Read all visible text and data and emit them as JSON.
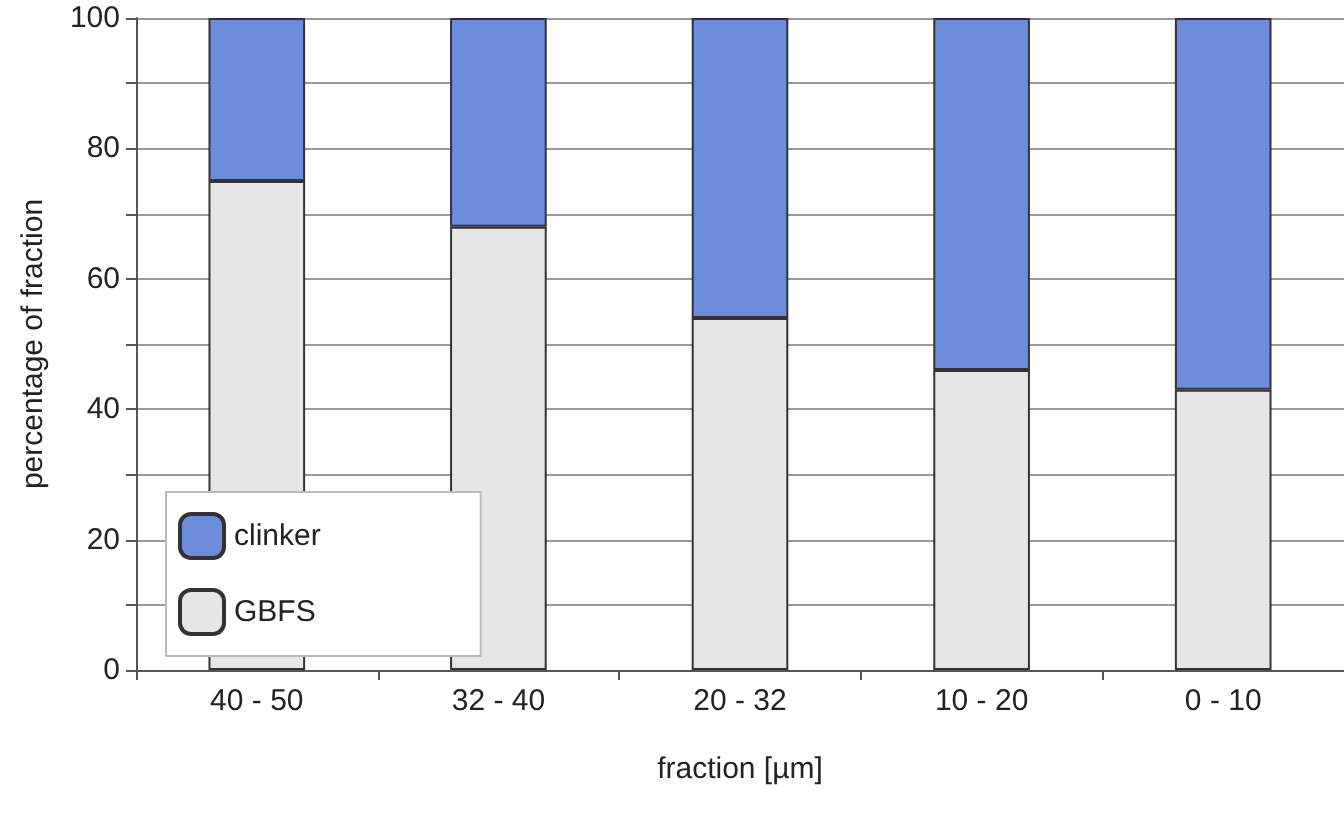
{
  "chart_data": {
    "type": "bar",
    "stacked": true,
    "xlabel": "fraction [µm]",
    "ylabel": "percentage of fraction",
    "categories": [
      "40 - 50",
      "32 - 40",
      "20 - 32",
      "10 - 20",
      "0 - 10"
    ],
    "series": [
      {
        "name": "GBFS",
        "color": "#e6e6e6",
        "values": [
          75,
          68,
          54,
          46,
          43
        ]
      },
      {
        "name": "clinker",
        "color": "#6c8cdc",
        "values": [
          25,
          32,
          46,
          54,
          57
        ]
      }
    ],
    "ylim": [
      0,
      100
    ],
    "yticks": [
      0,
      {
        "value": 10,
        "label": null
      },
      20,
      {
        "value": 30,
        "label": null
      },
      40,
      {
        "value": 50,
        "label": null
      },
      60,
      {
        "value": 70,
        "label": null
      },
      80,
      {
        "value": 90,
        "label": null
      },
      100
    ],
    "grid": "y",
    "legend": "bottom left"
  }
}
